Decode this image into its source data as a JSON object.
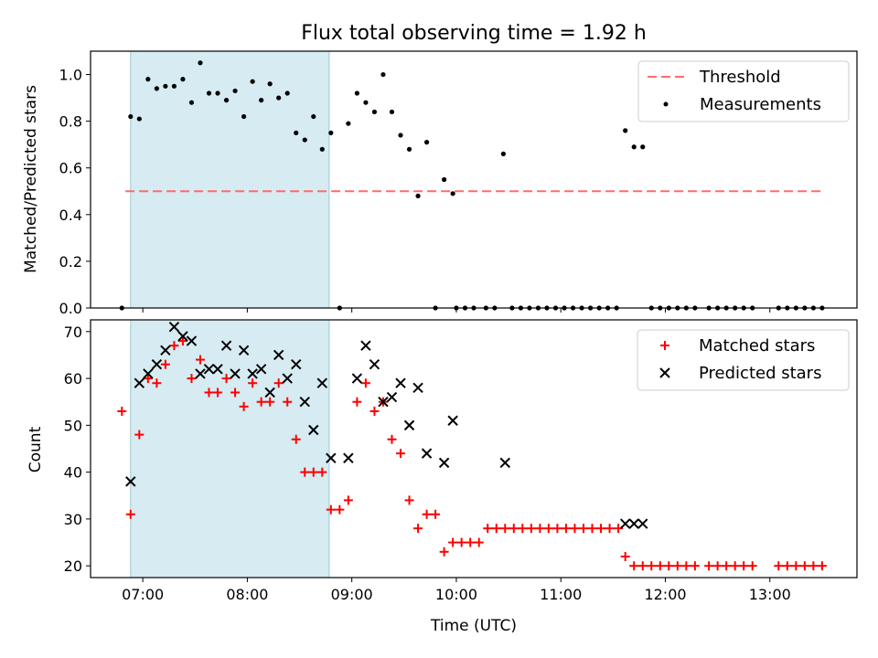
{
  "title": "Flux total observing time = 1.92 h",
  "colors": {
    "threshold": "#ff6b6b",
    "measurements": "#000000",
    "matched": "#ff0000",
    "predicted": "#000000",
    "highlight": "#add8e6"
  },
  "chart_data": [
    {
      "type": "scatter",
      "ylabel": "Matched/Predicted stars",
      "xlabel": "",
      "xlim": [
        "06:30",
        "13:50"
      ],
      "ylim": [
        0,
        1.1
      ],
      "x_ticks": [
        "07:00",
        "08:00",
        "09:00",
        "10:00",
        "11:00",
        "12:00",
        "13:00"
      ],
      "y_ticks": [
        "0.0",
        "0.2",
        "0.4",
        "0.6",
        "0.8",
        "1.0"
      ],
      "highlight_span": [
        "06:53",
        "08:47"
      ],
      "legend": {
        "placement": "top-right",
        "entries": [
          "Threshold",
          "Measurements"
        ]
      },
      "threshold": {
        "name": "Threshold",
        "y": 0.5,
        "x_range": [
          "06:50",
          "13:30"
        ]
      },
      "series": [
        {
          "name": "Measurements",
          "marker": "dot",
          "points": [
            [
              "06:48",
              0.0
            ],
            [
              "06:53",
              0.82
            ],
            [
              "06:58",
              0.81
            ],
            [
              "07:03",
              0.98
            ],
            [
              "07:08",
              0.94
            ],
            [
              "07:13",
              0.95
            ],
            [
              "07:18",
              0.95
            ],
            [
              "07:23",
              0.98
            ],
            [
              "07:28",
              0.88
            ],
            [
              "07:33",
              1.05
            ],
            [
              "07:38",
              0.92
            ],
            [
              "07:43",
              0.92
            ],
            [
              "07:48",
              0.89
            ],
            [
              "07:53",
              0.93
            ],
            [
              "07:58",
              0.82
            ],
            [
              "08:03",
              0.97
            ],
            [
              "08:08",
              0.89
            ],
            [
              "08:13",
              0.96
            ],
            [
              "08:18",
              0.9
            ],
            [
              "08:23",
              0.92
            ],
            [
              "08:28",
              0.75
            ],
            [
              "08:33",
              0.72
            ],
            [
              "08:38",
              0.82
            ],
            [
              "08:43",
              0.68
            ],
            [
              "08:48",
              0.75
            ],
            [
              "08:53",
              0.0
            ],
            [
              "08:58",
              0.79
            ],
            [
              "09:03",
              0.92
            ],
            [
              "09:08",
              0.88
            ],
            [
              "09:13",
              0.84
            ],
            [
              "09:18",
              1.0
            ],
            [
              "09:23",
              0.84
            ],
            [
              "09:28",
              0.74
            ],
            [
              "09:33",
              0.68
            ],
            [
              "09:38",
              0.48
            ],
            [
              "09:43",
              0.71
            ],
            [
              "09:48",
              0.0
            ],
            [
              "09:53",
              0.55
            ],
            [
              "09:58",
              0.49
            ],
            [
              "10:00",
              0.0
            ],
            [
              "10:05",
              0.0
            ],
            [
              "10:10",
              0.0
            ],
            [
              "10:17",
              0.0
            ],
            [
              "10:22",
              0.0
            ],
            [
              "10:27",
              0.66
            ],
            [
              "10:32",
              0.0
            ],
            [
              "10:37",
              0.0
            ],
            [
              "10:42",
              0.0
            ],
            [
              "10:47",
              0.0
            ],
            [
              "10:52",
              0.0
            ],
            [
              "10:57",
              0.0
            ],
            [
              "11:02",
              0.0
            ],
            [
              "11:07",
              0.0
            ],
            [
              "11:12",
              0.0
            ],
            [
              "11:17",
              0.0
            ],
            [
              "11:22",
              0.0
            ],
            [
              "11:27",
              0.0
            ],
            [
              "11:32",
              0.0
            ],
            [
              "11:37",
              0.76
            ],
            [
              "11:42",
              0.69
            ],
            [
              "11:47",
              0.69
            ],
            [
              "11:52",
              0.0
            ],
            [
              "11:57",
              0.0
            ],
            [
              "12:02",
              0.0
            ],
            [
              "12:07",
              0.0
            ],
            [
              "12:12",
              0.0
            ],
            [
              "12:17",
              0.0
            ],
            [
              "12:25",
              0.0
            ],
            [
              "12:30",
              0.0
            ],
            [
              "12:35",
              0.0
            ],
            [
              "12:40",
              0.0
            ],
            [
              "12:45",
              0.0
            ],
            [
              "12:50",
              0.0
            ],
            [
              "13:05",
              0.0
            ],
            [
              "13:10",
              0.0
            ],
            [
              "13:15",
              0.0
            ],
            [
              "13:20",
              0.0
            ],
            [
              "13:25",
              0.0
            ],
            [
              "13:30",
              0.0
            ]
          ]
        }
      ]
    },
    {
      "type": "scatter",
      "ylabel": "Count",
      "xlabel": "Time (UTC)",
      "xlim": [
        "06:30",
        "13:50"
      ],
      "ylim": [
        17.5,
        72.5
      ],
      "x_ticks": [
        "07:00",
        "08:00",
        "09:00",
        "10:00",
        "11:00",
        "12:00",
        "13:00"
      ],
      "y_ticks": [
        "20",
        "30",
        "40",
        "50",
        "60",
        "70"
      ],
      "highlight_span": [
        "06:53",
        "08:47"
      ],
      "legend": {
        "placement": "top-right",
        "entries": [
          "Matched stars",
          "Predicted stars"
        ]
      },
      "series": [
        {
          "name": "Matched stars",
          "marker": "plus",
          "points": [
            [
              "06:48",
              53
            ],
            [
              "06:53",
              31
            ],
            [
              "06:58",
              48
            ],
            [
              "07:03",
              60
            ],
            [
              "07:08",
              59
            ],
            [
              "07:13",
              63
            ],
            [
              "07:18",
              67
            ],
            [
              "07:23",
              68
            ],
            [
              "07:28",
              60
            ],
            [
              "07:33",
              64
            ],
            [
              "07:38",
              57
            ],
            [
              "07:43",
              57
            ],
            [
              "07:48",
              60
            ],
            [
              "07:53",
              57
            ],
            [
              "07:58",
              54
            ],
            [
              "08:03",
              59
            ],
            [
              "08:08",
              55
            ],
            [
              "08:13",
              55
            ],
            [
              "08:18",
              59
            ],
            [
              "08:23",
              55
            ],
            [
              "08:28",
              47
            ],
            [
              "08:33",
              40
            ],
            [
              "08:38",
              40
            ],
            [
              "08:43",
              40
            ],
            [
              "08:48",
              32
            ],
            [
              "08:53",
              32
            ],
            [
              "08:58",
              34
            ],
            [
              "09:03",
              55
            ],
            [
              "09:08",
              59
            ],
            [
              "09:13",
              53
            ],
            [
              "09:18",
              55
            ],
            [
              "09:23",
              47
            ],
            [
              "09:28",
              44
            ],
            [
              "09:33",
              34
            ],
            [
              "09:38",
              28
            ],
            [
              "09:43",
              31
            ],
            [
              "09:48",
              31
            ],
            [
              "09:53",
              23
            ],
            [
              "09:58",
              25
            ],
            [
              "10:03",
              25
            ],
            [
              "10:08",
              25
            ],
            [
              "10:13",
              25
            ],
            [
              "10:18",
              28
            ],
            [
              "10:23",
              28
            ],
            [
              "10:28",
              28
            ],
            [
              "10:33",
              28
            ],
            [
              "10:38",
              28
            ],
            [
              "10:43",
              28
            ],
            [
              "10:48",
              28
            ],
            [
              "10:53",
              28
            ],
            [
              "10:58",
              28
            ],
            [
              "11:03",
              28
            ],
            [
              "11:08",
              28
            ],
            [
              "11:13",
              28
            ],
            [
              "11:18",
              28
            ],
            [
              "11:23",
              28
            ],
            [
              "11:28",
              28
            ],
            [
              "11:33",
              28
            ],
            [
              "11:37",
              22
            ],
            [
              "11:42",
              20
            ],
            [
              "11:47",
              20
            ],
            [
              "11:52",
              20
            ],
            [
              "11:57",
              20
            ],
            [
              "12:02",
              20
            ],
            [
              "12:07",
              20
            ],
            [
              "12:12",
              20
            ],
            [
              "12:17",
              20
            ],
            [
              "12:25",
              20
            ],
            [
              "12:30",
              20
            ],
            [
              "12:35",
              20
            ],
            [
              "12:40",
              20
            ],
            [
              "12:45",
              20
            ],
            [
              "12:50",
              20
            ],
            [
              "13:05",
              20
            ],
            [
              "13:10",
              20
            ],
            [
              "13:15",
              20
            ],
            [
              "13:20",
              20
            ],
            [
              "13:25",
              20
            ],
            [
              "13:30",
              20
            ]
          ]
        },
        {
          "name": "Predicted stars",
          "marker": "x",
          "points": [
            [
              "06:53",
              38
            ],
            [
              "06:58",
              59
            ],
            [
              "07:03",
              61
            ],
            [
              "07:08",
              63
            ],
            [
              "07:13",
              66
            ],
            [
              "07:18",
              71
            ],
            [
              "07:23",
              69
            ],
            [
              "07:28",
              68
            ],
            [
              "07:33",
              61
            ],
            [
              "07:38",
              62
            ],
            [
              "07:43",
              62
            ],
            [
              "07:48",
              67
            ],
            [
              "07:53",
              61
            ],
            [
              "07:58",
              66
            ],
            [
              "08:03",
              61
            ],
            [
              "08:08",
              62
            ],
            [
              "08:13",
              57
            ],
            [
              "08:18",
              65
            ],
            [
              "08:23",
              60
            ],
            [
              "08:28",
              63
            ],
            [
              "08:33",
              55
            ],
            [
              "08:38",
              49
            ],
            [
              "08:43",
              59
            ],
            [
              "08:48",
              43
            ],
            [
              "08:58",
              43
            ],
            [
              "09:03",
              60
            ],
            [
              "09:08",
              67
            ],
            [
              "09:13",
              63
            ],
            [
              "09:18",
              55
            ],
            [
              "09:23",
              56
            ],
            [
              "09:28",
              59
            ],
            [
              "09:33",
              50
            ],
            [
              "09:38",
              58
            ],
            [
              "09:43",
              44
            ],
            [
              "09:53",
              42
            ],
            [
              "09:58",
              51
            ],
            [
              "10:28",
              42
            ],
            [
              "11:37",
              29
            ],
            [
              "11:42",
              29
            ],
            [
              "11:47",
              29
            ]
          ]
        }
      ]
    }
  ]
}
